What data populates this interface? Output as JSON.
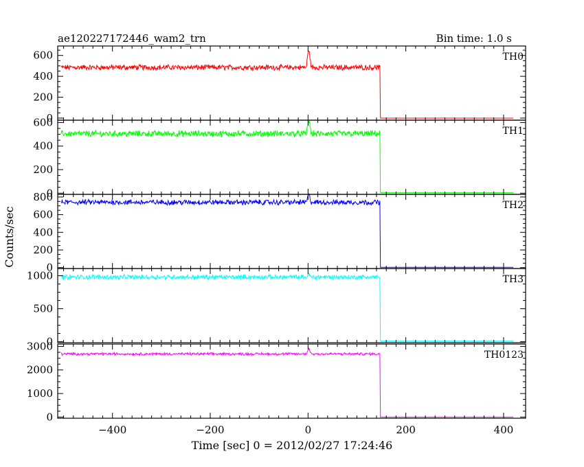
{
  "header": {
    "title": "ae120227172446_wam2_trn",
    "bin_time": "Bin time: 1.0 s"
  },
  "axes": {
    "xlabel": "Time [sec] 0 = 2012/02/27 17:24:46",
    "ylabel": "Counts/sec"
  },
  "chart_data": {
    "type": "line",
    "title": "ae120227172446_wam2_trn",
    "xlabel": "Time [sec] 0 = 2012/02/27 17:24:46",
    "ylabel": "Counts/sec",
    "xlim": [
      -512,
      445
    ],
    "x_ticks": [
      -400,
      -200,
      0,
      200,
      400
    ],
    "grid": false,
    "series": [
      {
        "name": "TH0",
        "color": "#ff0000",
        "ylim": [
          -20,
          690
        ],
        "y_ticks": [
          0,
          200,
          400,
          600
        ],
        "start_x": -505,
        "end_x": 147,
        "final_x": 420,
        "baseline": 485,
        "noise": 22,
        "spike": 190,
        "after": 0
      },
      {
        "name": "TH1",
        "color": "#00ff00",
        "ylim": [
          -10,
          620
        ],
        "y_ticks": [
          0,
          200,
          400,
          600
        ],
        "start_x": -505,
        "end_x": 147,
        "final_x": 420,
        "baseline": 505,
        "noise": 22,
        "spike": 120,
        "after": 5
      },
      {
        "name": "TH2",
        "color": "#0000ff",
        "ylim": [
          -10,
          830
        ],
        "y_ticks": [
          0,
          200,
          400,
          600,
          800
        ],
        "start_x": -505,
        "end_x": 147,
        "final_x": 420,
        "baseline": 740,
        "noise": 25,
        "spike": 90,
        "after": 3
      },
      {
        "name": "TH3",
        "color": "#00ffff",
        "ylim": [
          -15,
          1110
        ],
        "y_ticks": [
          0,
          500,
          1000
        ],
        "start_x": -505,
        "end_x": 147,
        "final_x": 420,
        "baseline": 980,
        "noise": 30,
        "spike": 40,
        "after": 10
      },
      {
        "name": "TH0123",
        "color": "#ff00ff",
        "ylim": [
          -50,
          3100
        ],
        "y_ticks": [
          0,
          1000,
          2000,
          3000
        ],
        "start_x": -505,
        "end_x": 147,
        "final_x": 420,
        "baseline": 2680,
        "noise": 45,
        "spike": 250,
        "after": 0
      }
    ]
  }
}
